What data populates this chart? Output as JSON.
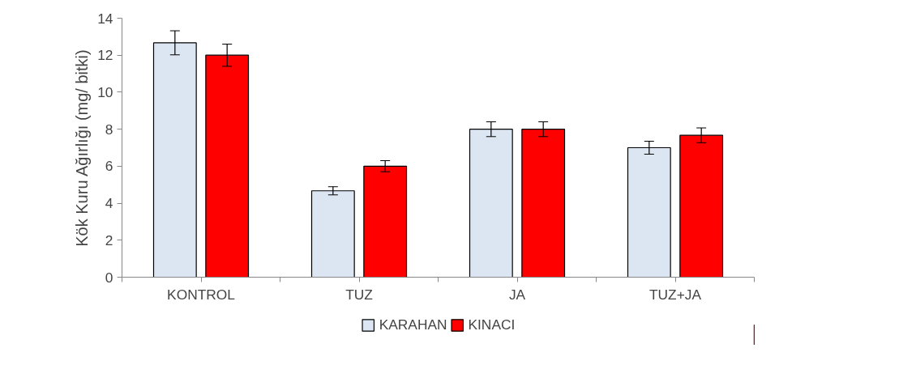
{
  "chart_data": {
    "type": "bar",
    "ylabel": "Kök Kuru Ağırlığı (mg/ bitki)",
    "categories": [
      "KONTROL",
      "TUZ",
      "JA",
      "TUZ+JA"
    ],
    "series": [
      {
        "name": "KARAHAN",
        "color": "#dce6f2",
        "values": [
          12.67,
          4.67,
          8.0,
          7.0
        ],
        "errors": [
          0.65,
          0.22,
          0.4,
          0.35
        ]
      },
      {
        "name": "KINACI",
        "color": "#ff0000",
        "values": [
          12.0,
          6.0,
          8.0,
          7.67
        ],
        "errors": [
          0.6,
          0.3,
          0.4,
          0.4
        ]
      }
    ],
    "ylim": [
      0,
      14
    ],
    "yticks": [
      0,
      2,
      4,
      6,
      8,
      10,
      12,
      14
    ],
    "grid": false,
    "legend": "bottom"
  }
}
